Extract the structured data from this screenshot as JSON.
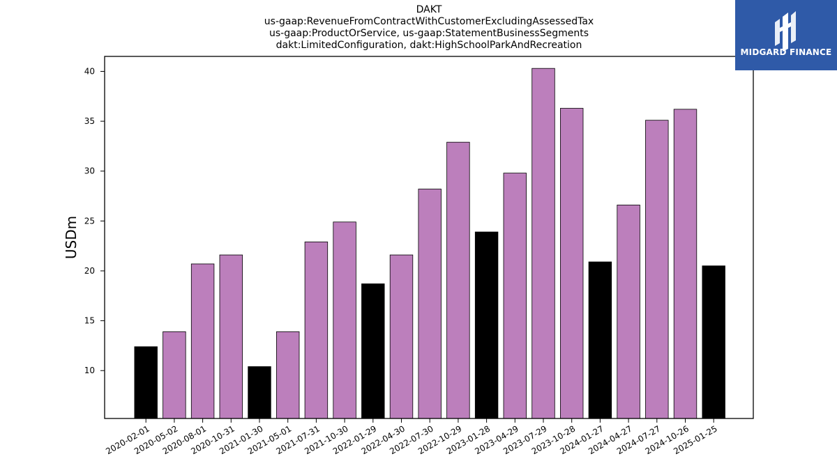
{
  "header": {
    "title_lines": [
      "DAKT",
      "us-gaap:RevenueFromContractWithCustomerExcludingAssessedTax",
      "us-gaap:ProductOrService, us-gaap:StatementBusinessSegments",
      "dakt:LimitedConfiguration, dakt:HighSchoolParkAndRecreation"
    ]
  },
  "logo": {
    "text": "MIDGARD FINANCE",
    "background": "#2f5aa8"
  },
  "chart_data": {
    "type": "bar",
    "title": "DAKT",
    "ylabel": "USDm",
    "xlabel": "",
    "ylim": [
      5.2,
      41.5
    ],
    "yticks": [
      10,
      15,
      20,
      25,
      30,
      35,
      40
    ],
    "grid": false,
    "colors": {
      "quarter": "#bc7fbc",
      "fiscal_year_end": "#000000"
    },
    "categories": [
      "2020-02-01",
      "2020-05-02",
      "2020-08-01",
      "2020-10-31",
      "2021-01-30",
      "2021-05-01",
      "2021-07-31",
      "2021-10-30",
      "2022-01-29",
      "2022-04-30",
      "2022-07-30",
      "2022-10-29",
      "2023-01-28",
      "2023-04-29",
      "2023-07-29",
      "2023-10-28",
      "2024-01-27",
      "2024-04-27",
      "2024-07-27",
      "2024-10-26",
      "2025-01-25"
    ],
    "values": [
      12.4,
      13.9,
      20.7,
      21.6,
      10.4,
      13.9,
      22.9,
      24.9,
      18.7,
      21.6,
      28.2,
      32.9,
      23.9,
      29.8,
      40.3,
      36.3,
      20.9,
      26.6,
      35.1,
      36.2,
      20.5
    ],
    "is_fiscal_year_end": [
      true,
      false,
      false,
      false,
      true,
      false,
      false,
      false,
      true,
      false,
      false,
      false,
      true,
      false,
      false,
      false,
      true,
      false,
      false,
      false,
      true
    ]
  }
}
